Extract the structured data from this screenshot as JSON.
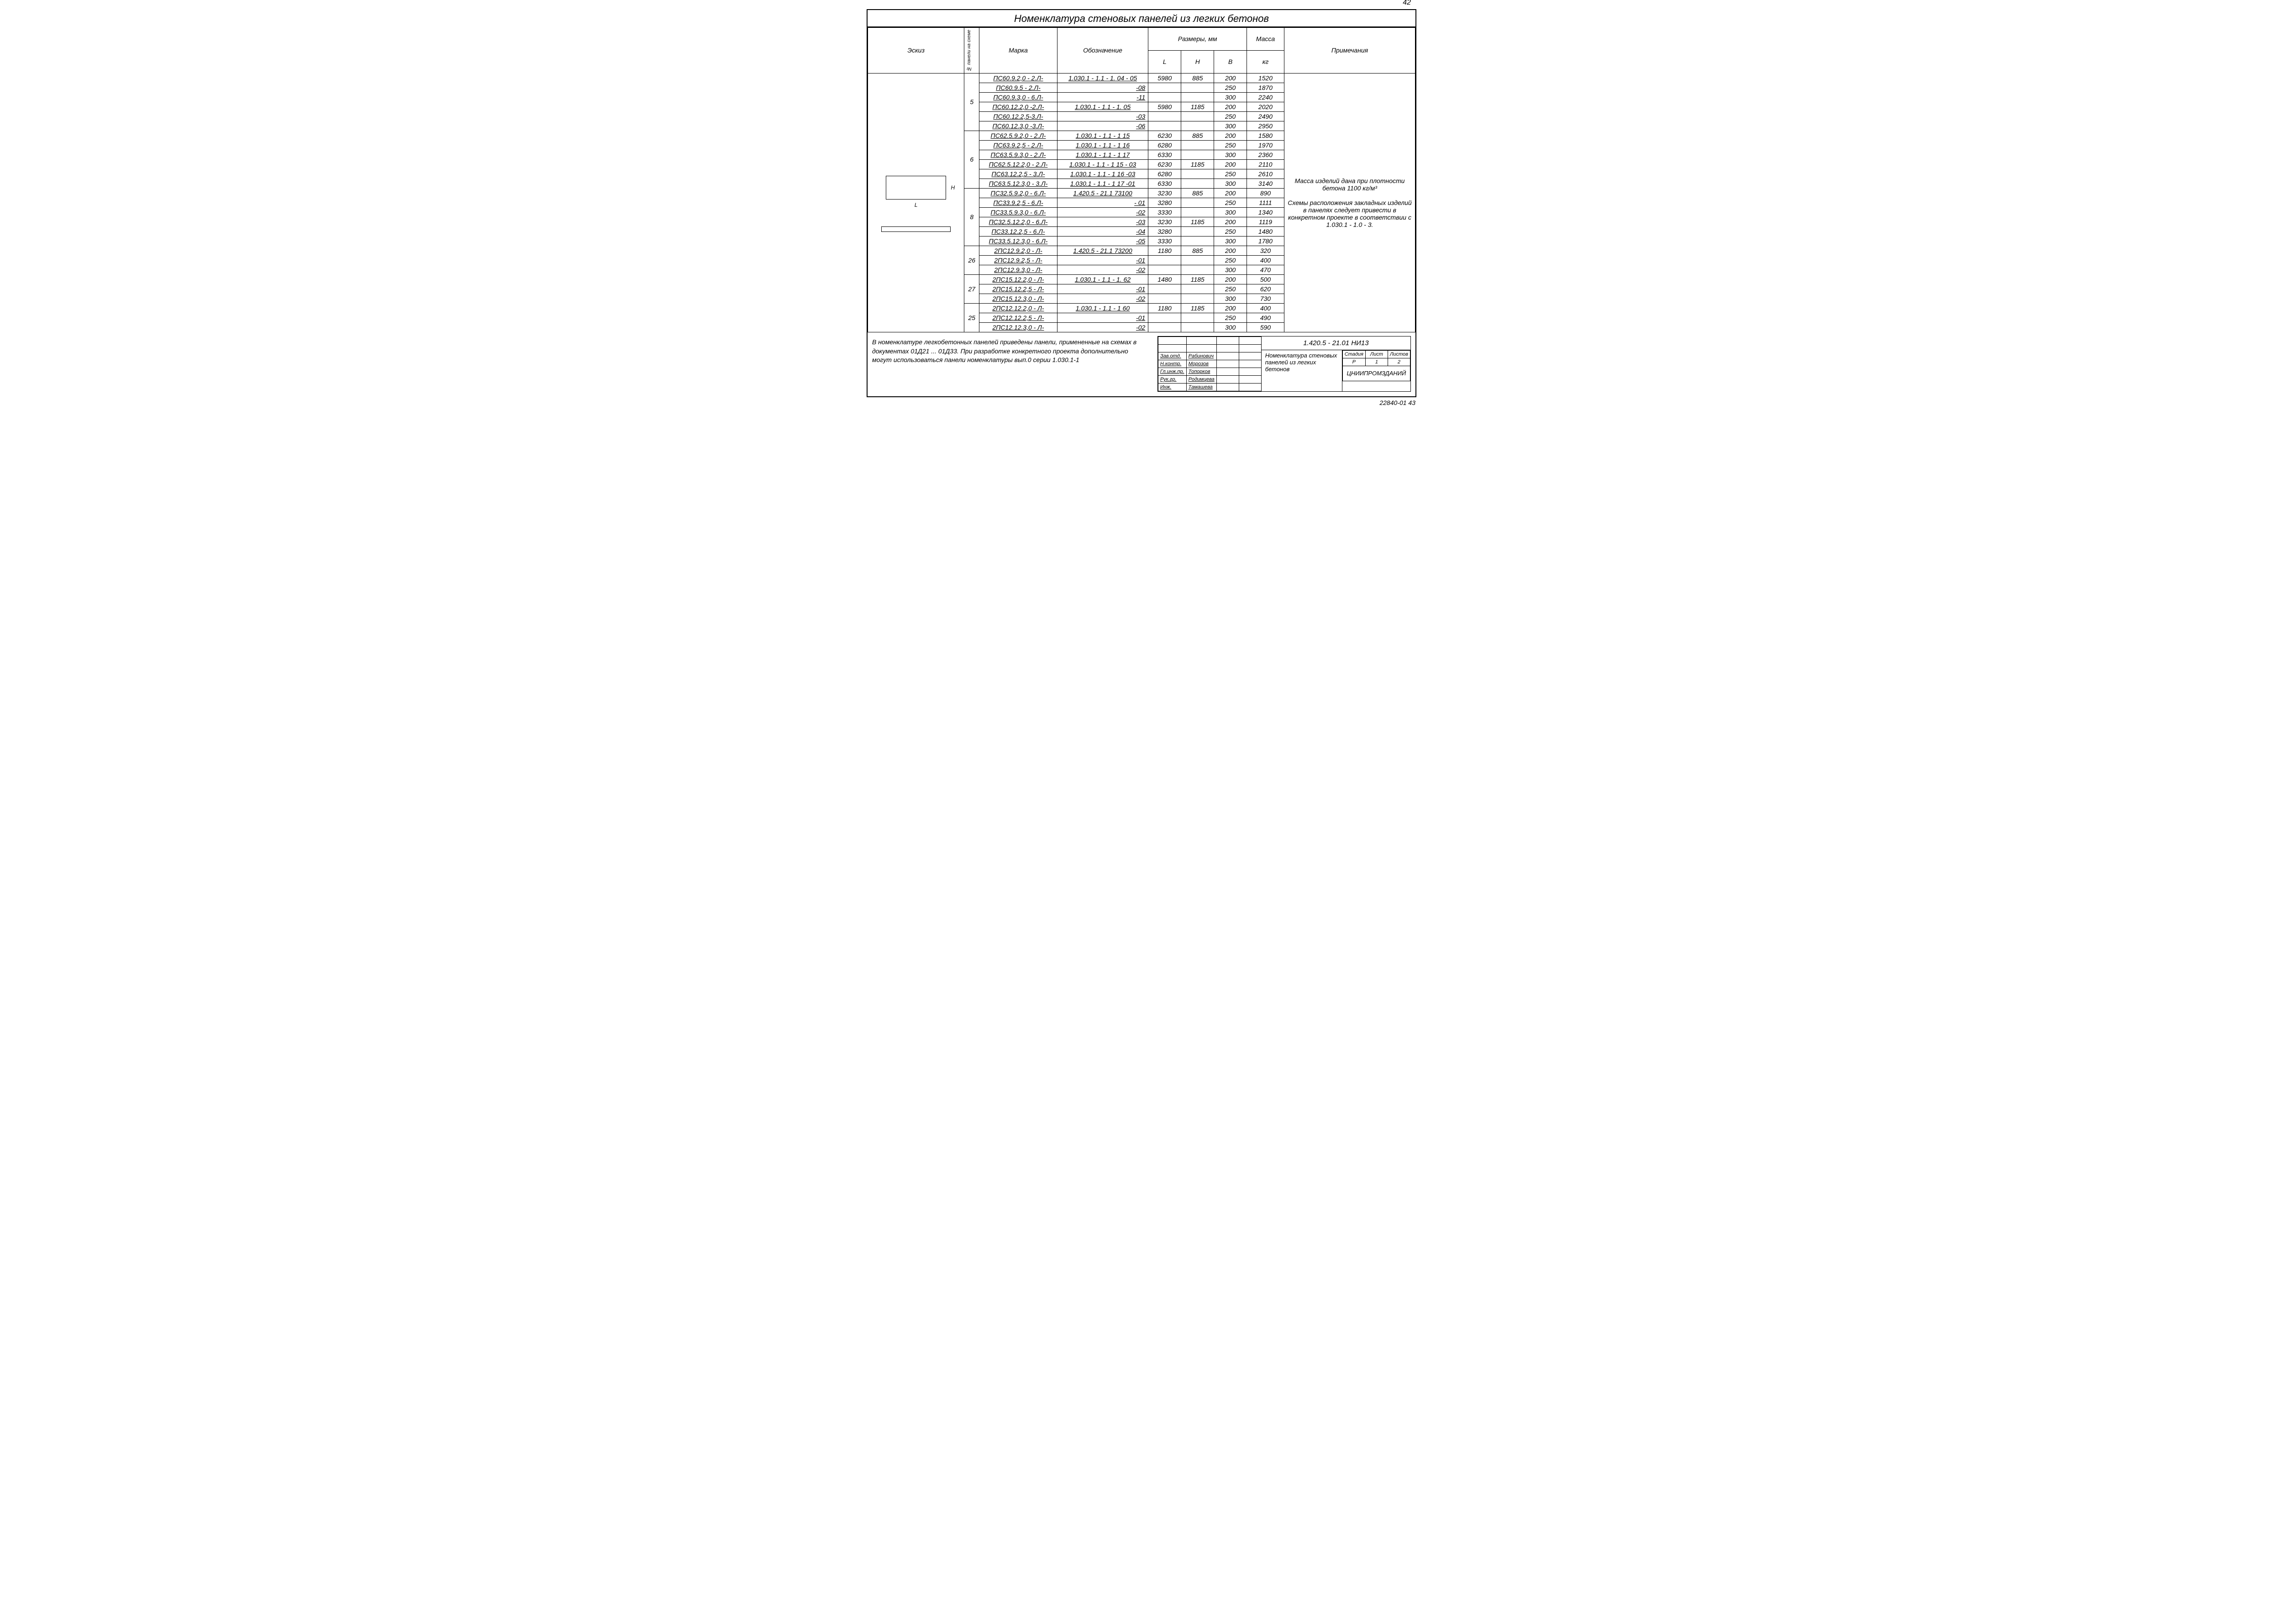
{
  "pageNumTop": "42",
  "title": "Номенклатура   стеновых   панелей   из  легких   бетонов",
  "headers": {
    "sketch": "Эскиз",
    "scheme": "№ панели на схеме",
    "mark": "Марка",
    "desig": "Обозначение",
    "dims": "Размеры, мм",
    "L": "L",
    "H": "H",
    "B": "B",
    "mass": "Масса",
    "massUnit": "кг",
    "note": "Примечания"
  },
  "sketchLabels": {
    "L": "L",
    "H": "H"
  },
  "noteText": "Масса  изделий  дана при  плотности  бетона 1100 кг/м³\n\nСхемы  расположения закладных  изделий  в панелях следует   привести в конкретном   проекте в  соответствии   с 1.030.1 - 1.0 - 3.",
  "groups": [
    {
      "scheme": "5",
      "rows": [
        {
          "mark": "ПС60.9.2,0 - 2.Л-",
          "desig": "1.030.1 - 1.1 - 1.  04 - 05",
          "L": "5980",
          "H": "885",
          "B": "200",
          "mass": "1520"
        },
        {
          "mark": "ПС60.9.5 - 2.Л-",
          "desig": "-08",
          "L": "",
          "H": "",
          "B": "250",
          "mass": "1870"
        },
        {
          "mark": "ПС60.9.3,0 - 6.Л-",
          "desig": "-11",
          "L": "",
          "H": "",
          "B": "300",
          "mass": "2240"
        },
        {
          "mark": "ПС60.12.2,0 -2.Л-",
          "desig": "1.030.1 - 1.1 - 1.  05",
          "L": "5980",
          "H": "1185",
          "B": "200",
          "mass": "2020"
        },
        {
          "mark": "ПС60.12.2,5-3.Л-",
          "desig": "-03",
          "L": "",
          "H": "",
          "B": "250",
          "mass": "2490"
        },
        {
          "mark": "ПС60.12.3,0 -3.Л-",
          "desig": "-06",
          "L": "",
          "H": "",
          "B": "300",
          "mass": "2950"
        }
      ]
    },
    {
      "scheme": "6",
      "rows": [
        {
          "mark": "ПС62.5.9.2,0 - 2.Л-",
          "desig": "1.030.1 - 1.1 - 1  15",
          "L": "6230",
          "H": "885",
          "B": "200",
          "mass": "1580"
        },
        {
          "mark": "ПС63.9.2,5 - 2.Л-",
          "desig": "1.030.1 - 1.1 - 1  16",
          "L": "6280",
          "H": "",
          "B": "250",
          "mass": "1970"
        },
        {
          "mark": "ПС63.5.9.3,0 - 2.Л-",
          "desig": "1.030.1 - 1.1 - 1  17",
          "L": "6330",
          "H": "",
          "B": "300",
          "mass": "2360"
        },
        {
          "mark": "ПС62.5.12.2,0 - 2.Л-",
          "desig": "1.030.1 - 1.1 - 1  15  - 03",
          "L": "6230",
          "H": "1185",
          "B": "200",
          "mass": "2110"
        },
        {
          "mark": "ПС63.12.2,5 - 3.Л-",
          "desig": "1.030.1 - 1.1 - 1 16   -03",
          "L": "6280",
          "H": "",
          "B": "250",
          "mass": "2610"
        },
        {
          "mark": "ПС63.5.12.3,0 - 3.Л-",
          "desig": "1.030.1 - 1.1 - 1 17   -01",
          "L": "6330",
          "H": "",
          "B": "300",
          "mass": "3140"
        }
      ]
    },
    {
      "scheme": "8",
      "rows": [
        {
          "mark": "ПС32.5.9.2,0 - 6.Л-",
          "desig": "1.420.5 - 21.1  73100",
          "L": "3230",
          "H": "885",
          "B": "200",
          "mass": "890"
        },
        {
          "mark": "ПС33.9.2,5 - 6.Л-",
          "desig": "- 01",
          "L": "3280",
          "H": "",
          "B": "250",
          "mass": "1111"
        },
        {
          "mark": "ПС33.5.9.3,0 - 6.Л-",
          "desig": "-02",
          "L": "3330",
          "H": "",
          "B": "300",
          "mass": "1340"
        },
        {
          "mark": "ПС32.5.12.2,0 - 6.Л-",
          "desig": "-03",
          "L": "3230",
          "H": "1185",
          "B": "200",
          "mass": "1119"
        },
        {
          "mark": "ПС33.12.2,5 - 6.Л-",
          "desig": "-04",
          "L": "3280",
          "H": "",
          "B": "250",
          "mass": "1480"
        },
        {
          "mark": "ПС33.5.12.3,0 - 6.Л-",
          "desig": "-05",
          "L": "3330",
          "H": "",
          "B": "300",
          "mass": "1780"
        }
      ]
    },
    {
      "scheme": "26",
      "rows": [
        {
          "mark": "2ПС12.9.2,0 - Л-",
          "desig": "1.420.5 - 21.1  73200",
          "L": "1180",
          "H": "885",
          "B": "200",
          "mass": "320"
        },
        {
          "mark": "2ПС12.9.2,5 - Л-",
          "desig": "-01",
          "L": "",
          "H": "",
          "B": "250",
          "mass": "400"
        },
        {
          "mark": "2ПС12.9.3,0 - Л-",
          "desig": "-02",
          "L": "",
          "H": "",
          "B": "300",
          "mass": "470"
        }
      ]
    },
    {
      "scheme": "27",
      "rows": [
        {
          "mark": "2ПС15.12.2,0 - Л-",
          "desig": "1.030.1 - 1.1 - 1. 62",
          "L": "1480",
          "H": "1185",
          "B": "200",
          "mass": "500"
        },
        {
          "mark": "2ПС15.12.2,5 - Л-",
          "desig": "-01",
          "L": "",
          "H": "",
          "B": "250",
          "mass": "620"
        },
        {
          "mark": "2ПС15.12.3,0 - Л-",
          "desig": "-02",
          "L": "",
          "H": "",
          "B": "300",
          "mass": "730"
        }
      ]
    },
    {
      "scheme": "25",
      "rows": [
        {
          "mark": "2ПС12.12.2,0 - Л-",
          "desig": "1.030.1 - 1.1 - 1  60",
          "L": "1180",
          "H": "1185",
          "B": "200",
          "mass": "400"
        },
        {
          "mark": "2ПС12.12.2,5 - Л-",
          "desig": "-01",
          "L": "",
          "H": "",
          "B": "250",
          "mass": "490"
        },
        {
          "mark": "2ПС12.12.3,0 - Л-",
          "desig": "-02",
          "L": "",
          "H": "",
          "B": "300",
          "mass": "590"
        }
      ]
    }
  ],
  "bottomNote": "В  номенклатуре   легкобетонных   панелей   приведены  панели, примененные   на  схемах   в  документах    01Д21 ... 01Д33. При  разработке  конкретного  проекта   дополнительно  могут использоваться   панели  номенклатуры   вып.0  серии  1.030.1-1",
  "stamp": {
    "roles": [
      [
        "Зав.отд.",
        "Рабинович"
      ],
      [
        "Н.контр.",
        "Морозов"
      ],
      [
        "Гл.инж.пр.",
        "Топорков"
      ],
      [
        "Рук.гр.",
        "Родимцева"
      ],
      [
        "Инж.",
        "Тамашева"
      ]
    ],
    "code": "1.420.5 - 21.01  НИ13",
    "desc": "Номенклатура стеновых  панелей из легких  бетонов",
    "meta": {
      "h1": "Стадия",
      "h2": "Лист",
      "h3": "Листов",
      "v1": "Р",
      "v2": "1",
      "v3": "2",
      "org": "ЦНИИПРОМЗДАНИЙ"
    }
  },
  "pageFoot": "22840-01   43"
}
